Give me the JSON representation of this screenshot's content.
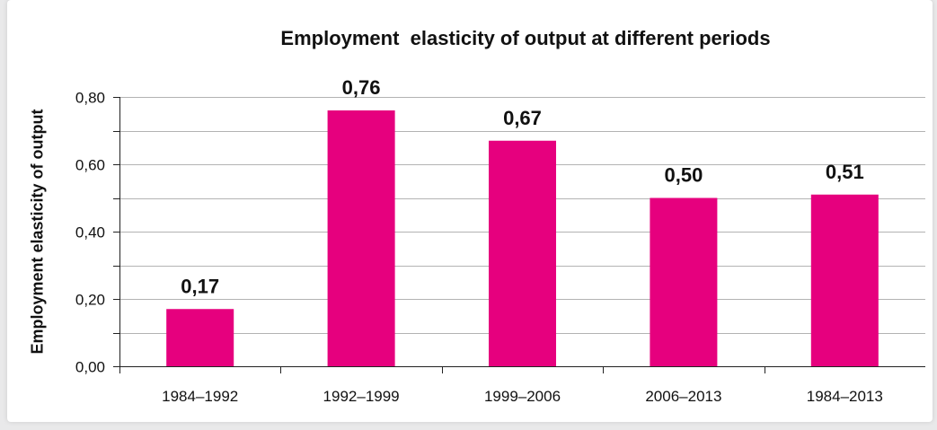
{
  "chart_data": {
    "type": "bar",
    "title": "Employment  elasticity of output at different periods",
    "xlabel": "",
    "ylabel": "Employment elasticity of output",
    "categories": [
      "1984–1992",
      "1992–1999",
      "1999–2006",
      "2006–2013",
      "1984–2013"
    ],
    "values": [
      0.17,
      0.76,
      0.67,
      0.5,
      0.51
    ],
    "data_labels": [
      "0,17",
      "0,76",
      "0,67",
      "0,50",
      "0,51"
    ],
    "ylim": [
      0,
      0.8
    ],
    "yticks": [
      0,
      0.2,
      0.4,
      0.6,
      0.8
    ],
    "ytick_labels": [
      "0,00",
      "0,20",
      "0,40",
      "0,60",
      "0,80"
    ],
    "grid": true,
    "bar_color": "#e6007e",
    "grid_color": "#b3b3b3"
  }
}
